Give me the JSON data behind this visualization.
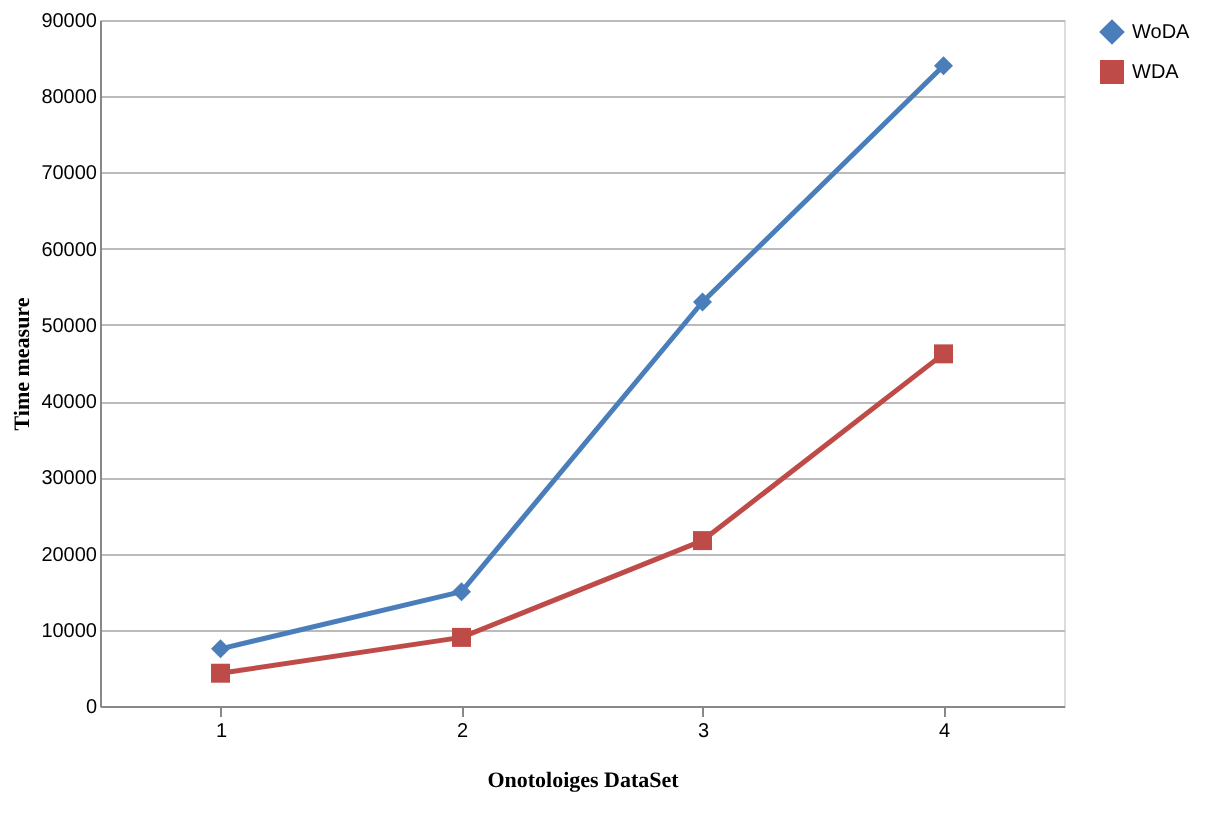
{
  "chart_data": {
    "type": "line",
    "xlabel": "Onotoloiges DataSet",
    "ylabel": "Time measure",
    "categories": [
      "1",
      "2",
      "3",
      "4"
    ],
    "series": [
      {
        "name": "WoDA",
        "color": "#4a7ebb",
        "marker": "diamond",
        "values": [
          7500,
          15000,
          53000,
          84000
        ]
      },
      {
        "name": "WDA",
        "color": "#be4b48",
        "marker": "square",
        "values": [
          4300,
          9000,
          21700,
          46200
        ]
      }
    ],
    "ylim": [
      0,
      90000
    ],
    "yticks": [
      0,
      10000,
      20000,
      30000,
      40000,
      50000,
      60000,
      70000,
      80000,
      90000
    ],
    "grid": "y",
    "legend": "right",
    "line_style": "solid"
  }
}
